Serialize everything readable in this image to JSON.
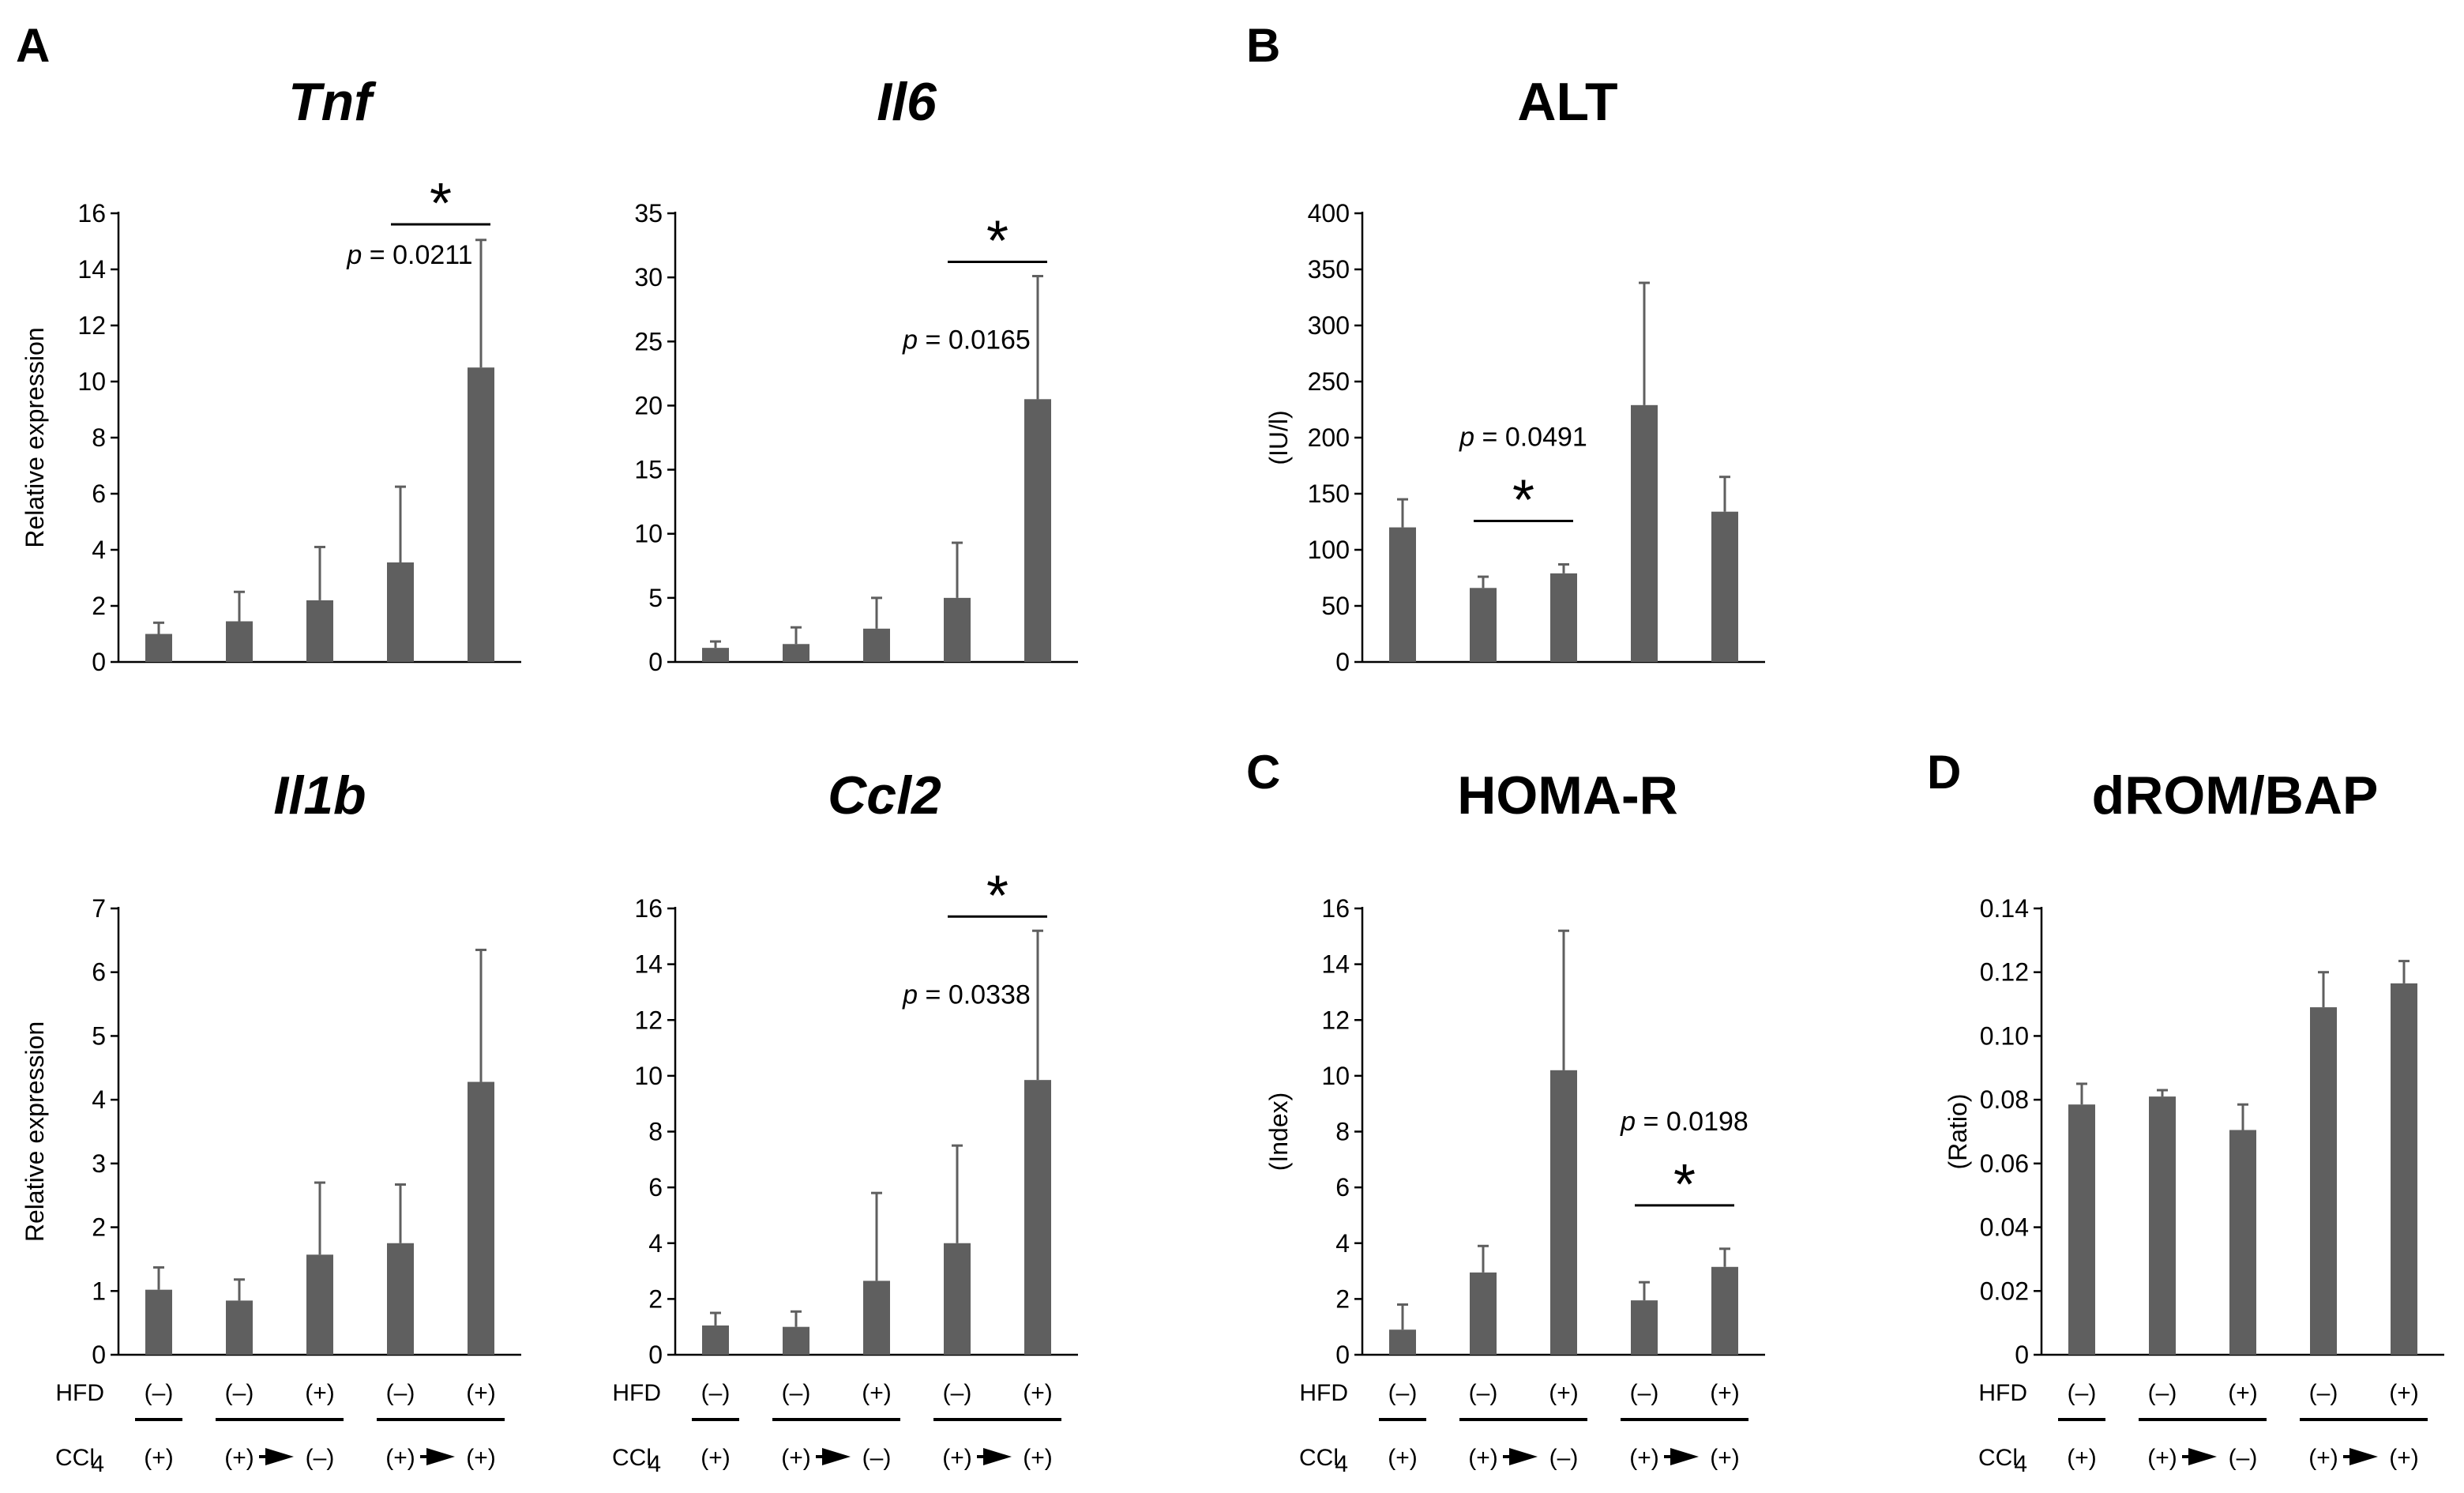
{
  "panel_letters": [
    "A",
    "B",
    "C",
    "D"
  ],
  "colors": {
    "bar": "#5f5f5f",
    "axis": "#000000"
  },
  "row_labels": {
    "hfd": "HFD",
    "ccl4": "CCl",
    "ccl4_sub": "4"
  },
  "hfd_labels": [
    "(–)",
    "(–)",
    "(+)",
    "(–)",
    "(+)"
  ],
  "ccl4_labels": [
    "(+)",
    "(+)",
    "(–)",
    "(+)",
    "(+)"
  ],
  "p_prefix": "p",
  "chart_data": [
    {
      "type": "bar",
      "title": "Tnf",
      "italic": true,
      "ylabel": "Relative expression",
      "ylim": [
        0,
        16
      ],
      "ticks": [
        0,
        2,
        4,
        6,
        8,
        10,
        12,
        14,
        16
      ],
      "values": [
        1.0,
        1.45,
        2.2,
        3.55,
        10.5
      ],
      "errors": [
        0.4,
        1.05,
        1.9,
        2.7,
        4.55
      ],
      "significance": {
        "bars": [
          3,
          4
        ],
        "p": "= 0.0211"
      }
    },
    {
      "type": "bar",
      "title": "Il6",
      "italic": true,
      "ylabel": "",
      "ylim": [
        0,
        35
      ],
      "ticks": [
        0,
        5,
        10,
        15,
        20,
        25,
        30,
        35
      ],
      "values": [
        1.1,
        1.4,
        2.6,
        5.0,
        20.5
      ],
      "errors": [
        0.5,
        1.3,
        2.4,
        4.3,
        9.6
      ],
      "significance": {
        "bars": [
          3,
          4
        ],
        "p": "= 0.0165"
      }
    },
    {
      "type": "bar",
      "title": "ALT",
      "italic": false,
      "ylabel": "(IU/l)",
      "ylim": [
        0,
        400
      ],
      "ticks": [
        0,
        50,
        100,
        150,
        200,
        250,
        300,
        350,
        400
      ],
      "values": [
        120,
        66,
        79,
        229,
        134
      ],
      "errors": [
        25,
        10,
        8,
        109,
        31
      ],
      "significance": {
        "bars": [
          1,
          2
        ],
        "p": "= 0.0491"
      }
    },
    {
      "type": "bar",
      "title": "Il1b",
      "italic": true,
      "ylabel": "Relative expression",
      "ylim": [
        0,
        7
      ],
      "ticks": [
        0,
        1,
        2,
        3,
        4,
        5,
        6,
        7
      ],
      "values": [
        1.02,
        0.85,
        1.57,
        1.75,
        4.28
      ],
      "errors": [
        0.35,
        0.33,
        1.13,
        0.92,
        2.07
      ],
      "significance": null
    },
    {
      "type": "bar",
      "title": "Ccl2",
      "italic": true,
      "ylabel": "",
      "ylim": [
        0,
        16
      ],
      "ticks": [
        0,
        2,
        4,
        6,
        8,
        10,
        12,
        14,
        16
      ],
      "values": [
        1.05,
        1.0,
        2.65,
        4.0,
        9.85
      ],
      "errors": [
        0.45,
        0.55,
        3.15,
        3.5,
        5.35
      ],
      "significance": {
        "bars": [
          3,
          4
        ],
        "p": "= 0.0338"
      }
    },
    {
      "type": "bar",
      "title": "HOMA-R",
      "italic": false,
      "ylabel": "(Index)",
      "ylim": [
        0,
        16
      ],
      "ticks": [
        0,
        2,
        4,
        6,
        8,
        10,
        12,
        14,
        16
      ],
      "values": [
        0.9,
        2.95,
        10.2,
        1.95,
        3.15
      ],
      "errors": [
        0.9,
        0.95,
        5.0,
        0.65,
        0.65
      ],
      "significance": {
        "bars": [
          3,
          4
        ],
        "p": "= 0.0198"
      }
    },
    {
      "type": "bar",
      "title": "dROM/BAP",
      "italic": false,
      "ylabel": "(Ratio)",
      "ylim": [
        0,
        0.14
      ],
      "ticks": [
        "0",
        "0.02",
        "0.04",
        "0.06",
        "0.08",
        "0.10",
        "0.12",
        "0.14"
      ],
      "values": [
        0.0785,
        0.081,
        0.0705,
        0.109,
        0.1165
      ],
      "errors": [
        0.0065,
        0.002,
        0.008,
        0.011,
        0.007
      ],
      "significance": null
    }
  ]
}
